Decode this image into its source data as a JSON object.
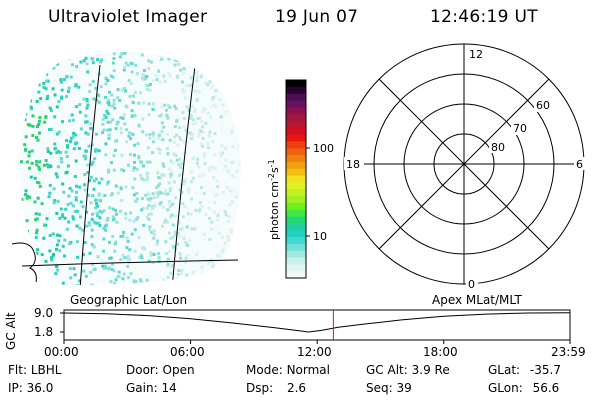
{
  "header": {
    "title": "Ultraviolet Imager",
    "date": "19 Jun 07",
    "time": "12:46:19 UT"
  },
  "colorbar": {
    "unit": "photon cm",
    "unit_exp1": "-2",
    "unit_mid": "s",
    "unit_exp2": "-1",
    "ticks": [
      "100",
      "10"
    ],
    "colors": [
      "#000000",
      "#2a0030",
      "#4a1050",
      "#6a1060",
      "#8a1050",
      "#a01840",
      "#b81830",
      "#d01020",
      "#e81810",
      "#f04010",
      "#f06010",
      "#f08010",
      "#f0a010",
      "#f0c010",
      "#f0e020",
      "#e0f020",
      "#c0f020",
      "#a0f020",
      "#70f020",
      "#40e840",
      "#20d870",
      "#20d0a0",
      "#20d0c0",
      "#40d8d0",
      "#70e0d8",
      "#a0e8e0",
      "#c8f0ec",
      "#e0f4f2",
      "#f0f8f8"
    ]
  },
  "polar": {
    "mlt_labels": [
      "12",
      "18",
      "6",
      "0"
    ],
    "mlat_labels": [
      "60",
      "70",
      "80"
    ]
  },
  "timeline": {
    "left_title": "Geographic Lat/Lon",
    "right_title": "Apex MLat/MLT",
    "y_axis_label": "GC Alt",
    "y_ticks": [
      "9.0",
      "1.8"
    ],
    "x_ticks": [
      "00:00",
      "06:00",
      "12:00",
      "18:00",
      "23:59"
    ],
    "marker_time_hours": 12.77,
    "orbit_alt_Re": [
      [
        0,
        9.0
      ],
      [
        2,
        8.7
      ],
      [
        4,
        8.0
      ],
      [
        6,
        6.8
      ],
      [
        8,
        5.2
      ],
      [
        10,
        3.4
      ],
      [
        11,
        2.4
      ],
      [
        11.6,
        1.8
      ],
      [
        12.2,
        2.4
      ],
      [
        13,
        3.6
      ],
      [
        14,
        4.6
      ],
      [
        16,
        6.4
      ],
      [
        18,
        7.8
      ],
      [
        20,
        8.6
      ],
      [
        22,
        9.0
      ],
      [
        23.98,
        9.1
      ]
    ],
    "marker_color": "#cc2222"
  },
  "status": {
    "filter_label": "Flt:",
    "filter_value": "LBHL",
    "door_label": "Door:",
    "door_value": "Open",
    "mode_label": "Mode:",
    "mode_value": "Normal",
    "gcalt_label": "GC Alt:",
    "gcalt_value": "3.9 Re",
    "glat_label": "GLat:",
    "glat_value": "-35.7",
    "ip_label": "IP:",
    "ip_value": "36.0",
    "gain_label": "Gain:",
    "gain_value": "14",
    "dsp_label": "Dsp:",
    "dsp_value": "2.6",
    "seq_label": "Seq:",
    "seq_value": "39",
    "glon_label": "GLon:",
    "glon_value": "56.6"
  }
}
